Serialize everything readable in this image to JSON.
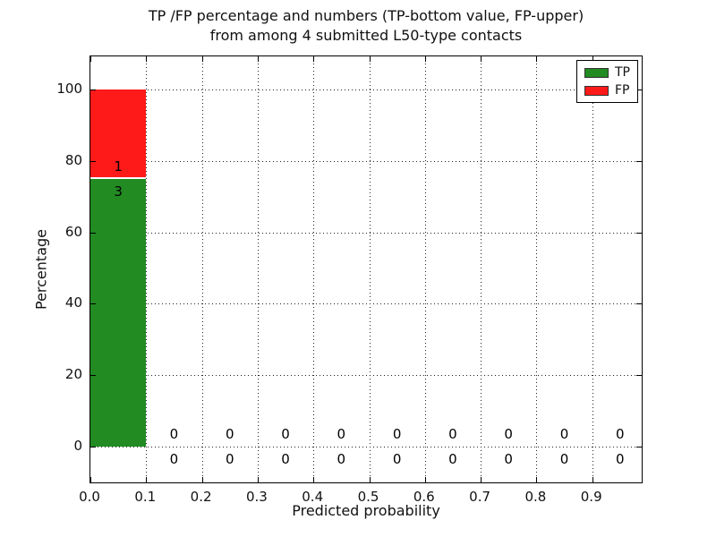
{
  "title": {
    "line1": "TP /FP percentage and numbers (TP-bottom value, FP-upper)",
    "line2": "from among 4 submitted L50-type contacts"
  },
  "axes": {
    "xlabel": "Predicted probability",
    "ylabel": "Percentage",
    "x_tick_labels": [
      "0.0",
      "0.1",
      "0.2",
      "0.3",
      "0.4",
      "0.5",
      "0.6",
      "0.7",
      "0.8",
      "0.9"
    ],
    "x_tick_values": [
      0.0,
      0.1,
      0.2,
      0.3,
      0.4,
      0.5,
      0.6,
      0.7,
      0.8,
      0.9
    ],
    "y_tick_labels": [
      "0",
      "20",
      "40",
      "60",
      "80",
      "100"
    ],
    "y_tick_values": [
      0,
      20,
      40,
      60,
      80,
      100
    ]
  },
  "legend": {
    "entries": [
      {
        "label": "TP",
        "color": "#228b22"
      },
      {
        "label": "FP",
        "color": "#ff1a1a"
      }
    ]
  },
  "colors": {
    "tp": "#228b22",
    "fp": "#ff1a1a",
    "grid": "#222222",
    "spine": "#000000",
    "background": "#ffffff"
  },
  "chart_data": {
    "type": "bar",
    "stacked": true,
    "title": "TP /FP percentage and numbers (TP-bottom value, FP-upper) from among 4 submitted L50-type contacts",
    "xlabel": "Predicted probability",
    "ylabel": "Percentage",
    "bin_starts": [
      0.0,
      0.1,
      0.2,
      0.3,
      0.4,
      0.5,
      0.6,
      0.7,
      0.8,
      0.9
    ],
    "bin_width": 0.1,
    "series": [
      {
        "name": "TP",
        "color": "#228b22",
        "percent": [
          75,
          0,
          0,
          0,
          0,
          0,
          0,
          0,
          0,
          0
        ],
        "counts": [
          3,
          0,
          0,
          0,
          0,
          0,
          0,
          0,
          0,
          0
        ]
      },
      {
        "name": "FP",
        "color": "#ff1a1a",
        "percent": [
          25,
          0,
          0,
          0,
          0,
          0,
          0,
          0,
          0,
          0
        ],
        "counts": [
          1,
          0,
          0,
          0,
          0,
          0,
          0,
          0,
          0,
          0
        ]
      }
    ],
    "total_contacts": 4,
    "xlim": [
      0,
      0.99
    ],
    "ylim": [
      -10.5,
      109.3
    ],
    "grid": true,
    "grid_style": "dotted",
    "legend_position": "upper right"
  }
}
